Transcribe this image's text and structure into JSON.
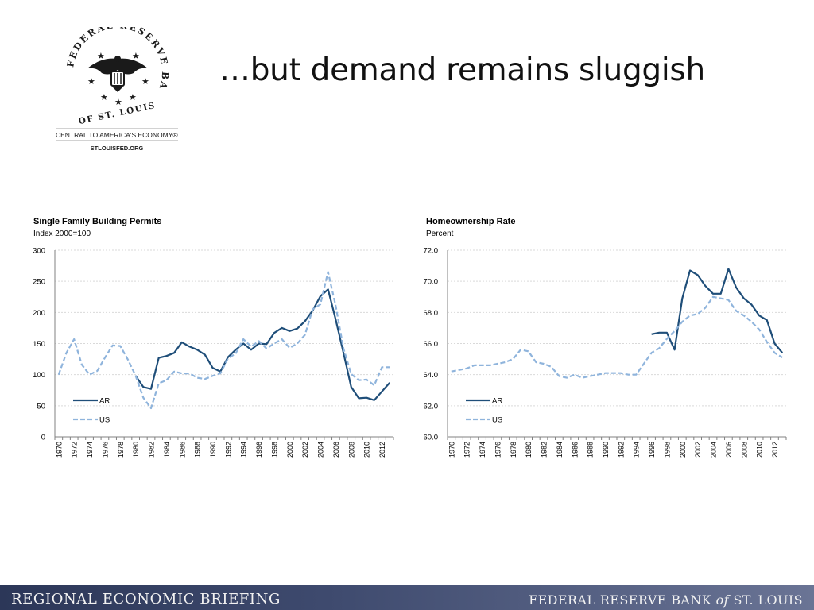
{
  "logo": {
    "arc_text": "FEDERAL RESERVE BANK",
    "bottom_text": "OF ST. LOUIS",
    "tagline": "CENTRAL TO AMERICA'S ECONOMY®",
    "url": "STLOUISFED.ORG",
    "icon": "eagle-seal-icon"
  },
  "slide": {
    "title": "…but demand remains sluggish"
  },
  "footer": {
    "left": "REGIONAL ECONOMIC BRIEFING",
    "right_part1": "FEDERAL RESERVE BANK ",
    "right_part2": "of",
    "right_part3": " ST. LOUIS"
  },
  "colors": {
    "ar": "#1f4e79",
    "us": "#8fb4dc",
    "grid": "#d9d9d9",
    "axis": "#808080",
    "footer": "#3a4567"
  },
  "chart_data": [
    {
      "type": "line",
      "title": "Single Family Building Permits",
      "subtitle": "Index 2000=100",
      "xlabel": "",
      "ylabel": "",
      "xlim": [
        1970,
        2013
      ],
      "ylim": [
        0,
        300
      ],
      "yticks": [
        0,
        50,
        100,
        150,
        200,
        250,
        300
      ],
      "ytick_labels": [
        "0",
        "50",
        "100",
        "150",
        "200",
        "250",
        "300"
      ],
      "xticks": [
        1970,
        1972,
        1974,
        1976,
        1978,
        1980,
        1982,
        1984,
        1986,
        1988,
        1990,
        1992,
        1994,
        1996,
        1998,
        2000,
        2002,
        2004,
        2006,
        2008,
        2010,
        2012
      ],
      "grid": true,
      "legend": "bottom-left",
      "series": [
        {
          "name": "AR",
          "style": "solid",
          "color": "#1f4e79",
          "x": [
            1980,
            1981,
            1982,
            1983,
            1984,
            1985,
            1986,
            1987,
            1988,
            1989,
            1990,
            1991,
            1992,
            1993,
            1994,
            1995,
            1996,
            1997,
            1998,
            1999,
            2000,
            2001,
            2002,
            2003,
            2004,
            2005,
            2006,
            2007,
            2008,
            2009,
            2010,
            2011,
            2012,
            2013
          ],
          "values": [
            98,
            80,
            77,
            127,
            130,
            135,
            152,
            145,
            140,
            132,
            111,
            105,
            128,
            140,
            150,
            140,
            150,
            149,
            167,
            175,
            170,
            174,
            186,
            203,
            226,
            237,
            188,
            135,
            80,
            62,
            63,
            59,
            73,
            87
          ]
        },
        {
          "name": "US",
          "style": "dashed",
          "color": "#8fb4dc",
          "x": [
            1970,
            1971,
            1972,
            1973,
            1974,
            1975,
            1976,
            1977,
            1978,
            1979,
            1980,
            1981,
            1982,
            1983,
            1984,
            1985,
            1986,
            1987,
            1988,
            1989,
            1990,
            1991,
            1992,
            1993,
            1994,
            1995,
            1996,
            1997,
            1998,
            1999,
            2000,
            2001,
            2002,
            2003,
            2004,
            2005,
            2006,
            2007,
            2008,
            2009,
            2010,
            2011,
            2012,
            2013
          ],
          "values": [
            100,
            135,
            157,
            116,
            100,
            106,
            127,
            147,
            146,
            124,
            98,
            63,
            46,
            86,
            91,
            105,
            102,
            102,
            95,
            93,
            98,
            102,
            126,
            134,
            157,
            145,
            154,
            142,
            150,
            157,
            143,
            150,
            164,
            205,
            213,
            265,
            210,
            142,
            101,
            91,
            92,
            83,
            112,
            112
          ]
        }
      ]
    },
    {
      "type": "line",
      "title": "Homeownership Rate",
      "subtitle": "Percent",
      "xlabel": "",
      "ylabel": "",
      "xlim": [
        1970,
        2013
      ],
      "ylim": [
        60,
        72
      ],
      "yticks": [
        60,
        62,
        64,
        66,
        68,
        70,
        72
      ],
      "ytick_labels": [
        "60.0",
        "62.0",
        "64.0",
        "66.0",
        "68.0",
        "70.0",
        "72.0"
      ],
      "xticks": [
        1970,
        1972,
        1974,
        1976,
        1978,
        1980,
        1982,
        1984,
        1986,
        1988,
        1990,
        1992,
        1994,
        1996,
        1998,
        2000,
        2002,
        2004,
        2006,
        2008,
        2010,
        2012
      ],
      "grid": true,
      "legend": "bottom-left",
      "series": [
        {
          "name": "AR",
          "style": "solid",
          "color": "#1f4e79",
          "x": [
            1996,
            1997,
            1998,
            1999,
            2000,
            2001,
            2002,
            2003,
            2004,
            2005,
            2006,
            2007,
            2008,
            2009,
            2010,
            2011,
            2012,
            2013
          ],
          "values": [
            66.6,
            66.7,
            66.7,
            65.6,
            68.9,
            70.7,
            70.4,
            69.7,
            69.2,
            69.2,
            70.8,
            69.6,
            68.9,
            68.5,
            67.8,
            67.5,
            66.0,
            65.4
          ]
        },
        {
          "name": "US",
          "style": "dashed",
          "color": "#8fb4dc",
          "x": [
            1970,
            1971,
            1972,
            1973,
            1974,
            1975,
            1976,
            1977,
            1978,
            1979,
            1980,
            1981,
            1982,
            1983,
            1984,
            1985,
            1986,
            1987,
            1988,
            1989,
            1990,
            1991,
            1992,
            1993,
            1994,
            1995,
            1996,
            1997,
            1998,
            1999,
            2000,
            2001,
            2002,
            2003,
            2004,
            2005,
            2006,
            2007,
            2008,
            2009,
            2010,
            2011,
            2012,
            2013
          ],
          "values": [
            64.2,
            64.3,
            64.4,
            64.6,
            64.6,
            64.6,
            64.7,
            64.8,
            65.0,
            65.6,
            65.5,
            64.8,
            64.7,
            64.5,
            63.9,
            63.8,
            64.0,
            63.8,
            63.9,
            64.0,
            64.1,
            64.1,
            64.1,
            64.0,
            64.0,
            64.7,
            65.4,
            65.7,
            66.3,
            66.8,
            67.4,
            67.8,
            67.9,
            68.3,
            69.0,
            68.9,
            68.8,
            68.1,
            67.8,
            67.4,
            66.9,
            66.1,
            65.4,
            65.1
          ]
        }
      ]
    }
  ]
}
